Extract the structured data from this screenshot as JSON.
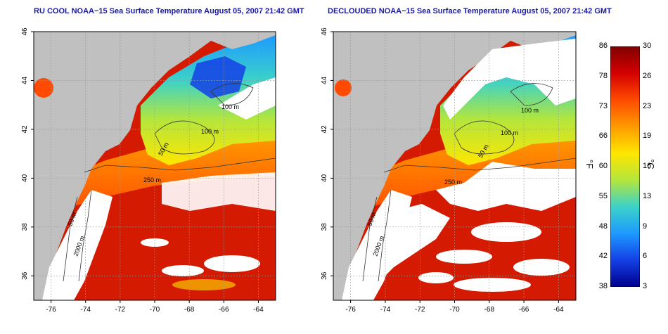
{
  "panels": [
    {
      "title": "RU COOL NOAA−15 Sea Surface Temperature August 05, 2007 21:42 GMT"
    },
    {
      "title": "DECLOUDED NOAA−15 Sea Surface Temperature August 05, 2007 21:42 GMT"
    }
  ],
  "map": {
    "lat_ticks": [
      "46",
      "44",
      "42",
      "40",
      "38",
      "36"
    ],
    "lon_ticks": [
      "-76",
      "-74",
      "-72",
      "-70",
      "-68",
      "-66",
      "-64"
    ],
    "contour_labels": [
      "100 m",
      "50 m",
      "100 m",
      "250 m",
      "50 m",
      "2000 m"
    ],
    "land_color": "#c0c0c0",
    "cloud_color": "#ffffff"
  },
  "colorbar": {
    "fahrenheit_ticks": [
      "86",
      "78",
      "73",
      "66",
      "60",
      "55",
      "48",
      "42",
      "38"
    ],
    "celsius_ticks": [
      "30",
      "26",
      "23",
      "19",
      "16",
      "13",
      "9",
      "6",
      "3"
    ],
    "fahrenheit_unit": "°F",
    "celsius_unit": "°C",
    "colors": [
      "#7f0000",
      "#d40000",
      "#ff4a00",
      "#ff9a00",
      "#ffe600",
      "#b4e63c",
      "#3cd2c8",
      "#1e9aff",
      "#1440e6",
      "#00008c"
    ]
  }
}
